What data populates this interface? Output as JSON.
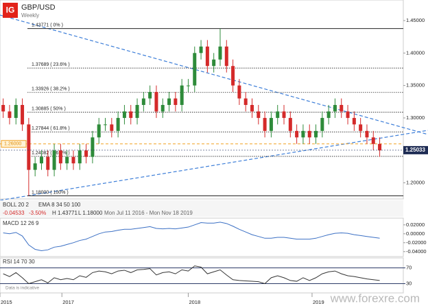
{
  "header": {
    "logo": "IG",
    "symbol": "GBP/USD",
    "timeframe": "Weekly"
  },
  "indicators": {
    "boll": "BOLL 20 2",
    "ema": "EMA 8 34 50 100",
    "change": "-0.04533",
    "change_pct": "-3.50%",
    "high": "H 1.43771",
    "low": "L 1.18000",
    "range": "Mon Jul 11 2016 - Mon Nov 18 2019"
  },
  "note": "Data is indicative",
  "watermark": "www.forexre.com",
  "chart_data": [
    {
      "type": "candlestick",
      "open": [
        1.32,
        1.31,
        1.3,
        1.32,
        1.29,
        1.22,
        1.23,
        1.24,
        1.22,
        1.25,
        1.23,
        1.24,
        1.23,
        1.25,
        1.24,
        1.27,
        1.29,
        1.29,
        1.28,
        1.3,
        1.31,
        1.3,
        1.32,
        1.33,
        1.34,
        1.31,
        1.32,
        1.33,
        1.32,
        1.35,
        1.35,
        1.4,
        1.41,
        1.38,
        1.39,
        1.41,
        1.38,
        1.35,
        1.33,
        1.32,
        1.31,
        1.3,
        1.28,
        1.3,
        1.31,
        1.3,
        1.28,
        1.27,
        1.28,
        1.27,
        1.28,
        1.3,
        1.31,
        1.32,
        1.31,
        1.3,
        1.29,
        1.28,
        1.27,
        1.26
      ],
      "high": [
        1.33,
        1.32,
        1.33,
        1.33,
        1.3,
        1.24,
        1.25,
        1.25,
        1.26,
        1.26,
        1.25,
        1.25,
        1.26,
        1.26,
        1.28,
        1.3,
        1.3,
        1.3,
        1.31,
        1.32,
        1.32,
        1.33,
        1.34,
        1.35,
        1.35,
        1.33,
        1.34,
        1.34,
        1.36,
        1.36,
        1.41,
        1.42,
        1.42,
        1.4,
        1.4377,
        1.42,
        1.39,
        1.36,
        1.34,
        1.33,
        1.32,
        1.31,
        1.31,
        1.32,
        1.32,
        1.31,
        1.29,
        1.29,
        1.29,
        1.29,
        1.31,
        1.32,
        1.33,
        1.33,
        1.32,
        1.31,
        1.3,
        1.29,
        1.28,
        1.27
      ],
      "low": [
        1.3,
        1.29,
        1.29,
        1.28,
        1.18,
        1.21,
        1.22,
        1.21,
        1.21,
        1.22,
        1.22,
        1.22,
        1.22,
        1.23,
        1.23,
        1.26,
        1.28,
        1.27,
        1.27,
        1.29,
        1.29,
        1.29,
        1.31,
        1.32,
        1.3,
        1.3,
        1.31,
        1.31,
        1.31,
        1.34,
        1.34,
        1.39,
        1.37,
        1.37,
        1.38,
        1.37,
        1.34,
        1.32,
        1.31,
        1.3,
        1.29,
        1.27,
        1.27,
        1.29,
        1.29,
        1.27,
        1.26,
        1.26,
        1.26,
        1.26,
        1.27,
        1.29,
        1.3,
        1.3,
        1.29,
        1.28,
        1.27,
        1.26,
        1.25,
        1.24
      ],
      "close": [
        1.31,
        1.3,
        1.32,
        1.29,
        1.22,
        1.23,
        1.24,
        1.22,
        1.25,
        1.23,
        1.24,
        1.23,
        1.25,
        1.24,
        1.27,
        1.29,
        1.29,
        1.28,
        1.3,
        1.31,
        1.3,
        1.32,
        1.33,
        1.34,
        1.31,
        1.32,
        1.33,
        1.32,
        1.35,
        1.35,
        1.4,
        1.41,
        1.38,
        1.39,
        1.41,
        1.38,
        1.35,
        1.33,
        1.32,
        1.31,
        1.3,
        1.28,
        1.3,
        1.31,
        1.3,
        1.28,
        1.27,
        1.28,
        1.27,
        1.28,
        1.3,
        1.31,
        1.32,
        1.31,
        1.3,
        1.29,
        1.28,
        1.27,
        1.26,
        1.25
      ],
      "up_color": "#2e8b3a",
      "down_color": "#d42a2a",
      "xlim": [
        -0.5,
        62.7
      ],
      "ylim": [
        1.1752,
        1.4817
      ],
      "yticks": [
        {
          "value": 1.45,
          "label": "1.45000"
        },
        {
          "value": 1.4,
          "label": "1.40000"
        },
        {
          "value": 1.35,
          "label": "1.35000"
        },
        {
          "value": 1.3,
          "label": "1.30000"
        },
        {
          "value": 1.2,
          "label": "1.20000"
        }
      ],
      "fib_levels": [
        {
          "value": 1.43771,
          "label": "1.43771 ( 0% )"
        },
        {
          "value": 1.37689,
          "label": "1.37689 ( 23.6% )"
        },
        {
          "value": 1.33926,
          "label": "1.33926 ( 38.2% )"
        },
        {
          "value": 1.30885,
          "label": "1.30885 ( 50% )"
        },
        {
          "value": 1.27844,
          "label": "1.27844 ( 61.8% )"
        },
        {
          "value": 1.24082,
          "label": "1.24082 ( 76.4% )"
        },
        {
          "value": 1.18,
          "label": "1.18000 ( 100% )"
        }
      ],
      "current_price": {
        "value": 1.25033,
        "label": "1.25033"
      },
      "alert_level": {
        "value": 1.26,
        "label": "1.26000"
      }
    },
    {
      "type": "line",
      "title": "MACD 12 26 9",
      "color": "#3a6fc4",
      "values": [
        0.002,
        0.0,
        0.003,
        -0.005,
        -0.025,
        -0.035,
        -0.038,
        -0.036,
        -0.03,
        -0.028,
        -0.024,
        -0.02,
        -0.015,
        -0.012,
        -0.006,
        0.0,
        0.004,
        0.005,
        0.008,
        0.01,
        0.01,
        0.012,
        0.014,
        0.016,
        0.012,
        0.011,
        0.012,
        0.011,
        0.013,
        0.015,
        0.02,
        0.025,
        0.024,
        0.024,
        0.026,
        0.023,
        0.017,
        0.01,
        0.004,
        -0.002,
        -0.006,
        -0.01,
        -0.01,
        -0.008,
        -0.008,
        -0.01,
        -0.012,
        -0.012,
        -0.012,
        -0.01,
        -0.006,
        -0.002,
        0.001,
        0.002,
        0.001,
        -0.002,
        -0.004,
        -0.006,
        -0.008,
        -0.01
      ],
      "xlim": [
        -0.5,
        62.7
      ],
      "ylim": [
        -0.048,
        0.032
      ],
      "yticks": [
        {
          "value": 0.02,
          "label": "0.02000"
        },
        {
          "value": 0,
          "label": "0.00000"
        },
        {
          "value": -0.02,
          "label": "-0.02000"
        },
        {
          "value": -0.04,
          "label": "-0.04000"
        }
      ]
    },
    {
      "type": "line",
      "title": "RSI 14 70 30",
      "color": "#333333",
      "values": [
        55,
        48,
        58,
        45,
        30,
        35,
        40,
        32,
        45,
        40,
        43,
        40,
        50,
        46,
        58,
        62,
        60,
        55,
        62,
        64,
        58,
        65,
        66,
        68,
        52,
        58,
        60,
        55,
        65,
        62,
        75,
        72,
        55,
        60,
        65,
        52,
        40,
        38,
        37,
        36,
        35,
        30,
        45,
        50,
        45,
        38,
        36,
        45,
        38,
        45,
        55,
        60,
        62,
        55,
        50,
        48,
        45,
        42,
        40,
        38
      ],
      "xlim": [
        -0.5,
        62.7
      ],
      "ylim": [
        10,
        90
      ],
      "yticks": [
        70,
        30
      ],
      "xticks": [
        {
          "value": -0.5,
          "label": "2015"
        },
        {
          "value": 9.2,
          "label": "2017"
        },
        {
          "value": 29,
          "label": "2018"
        },
        {
          "value": 48.4,
          "label": "2019"
        }
      ]
    }
  ]
}
